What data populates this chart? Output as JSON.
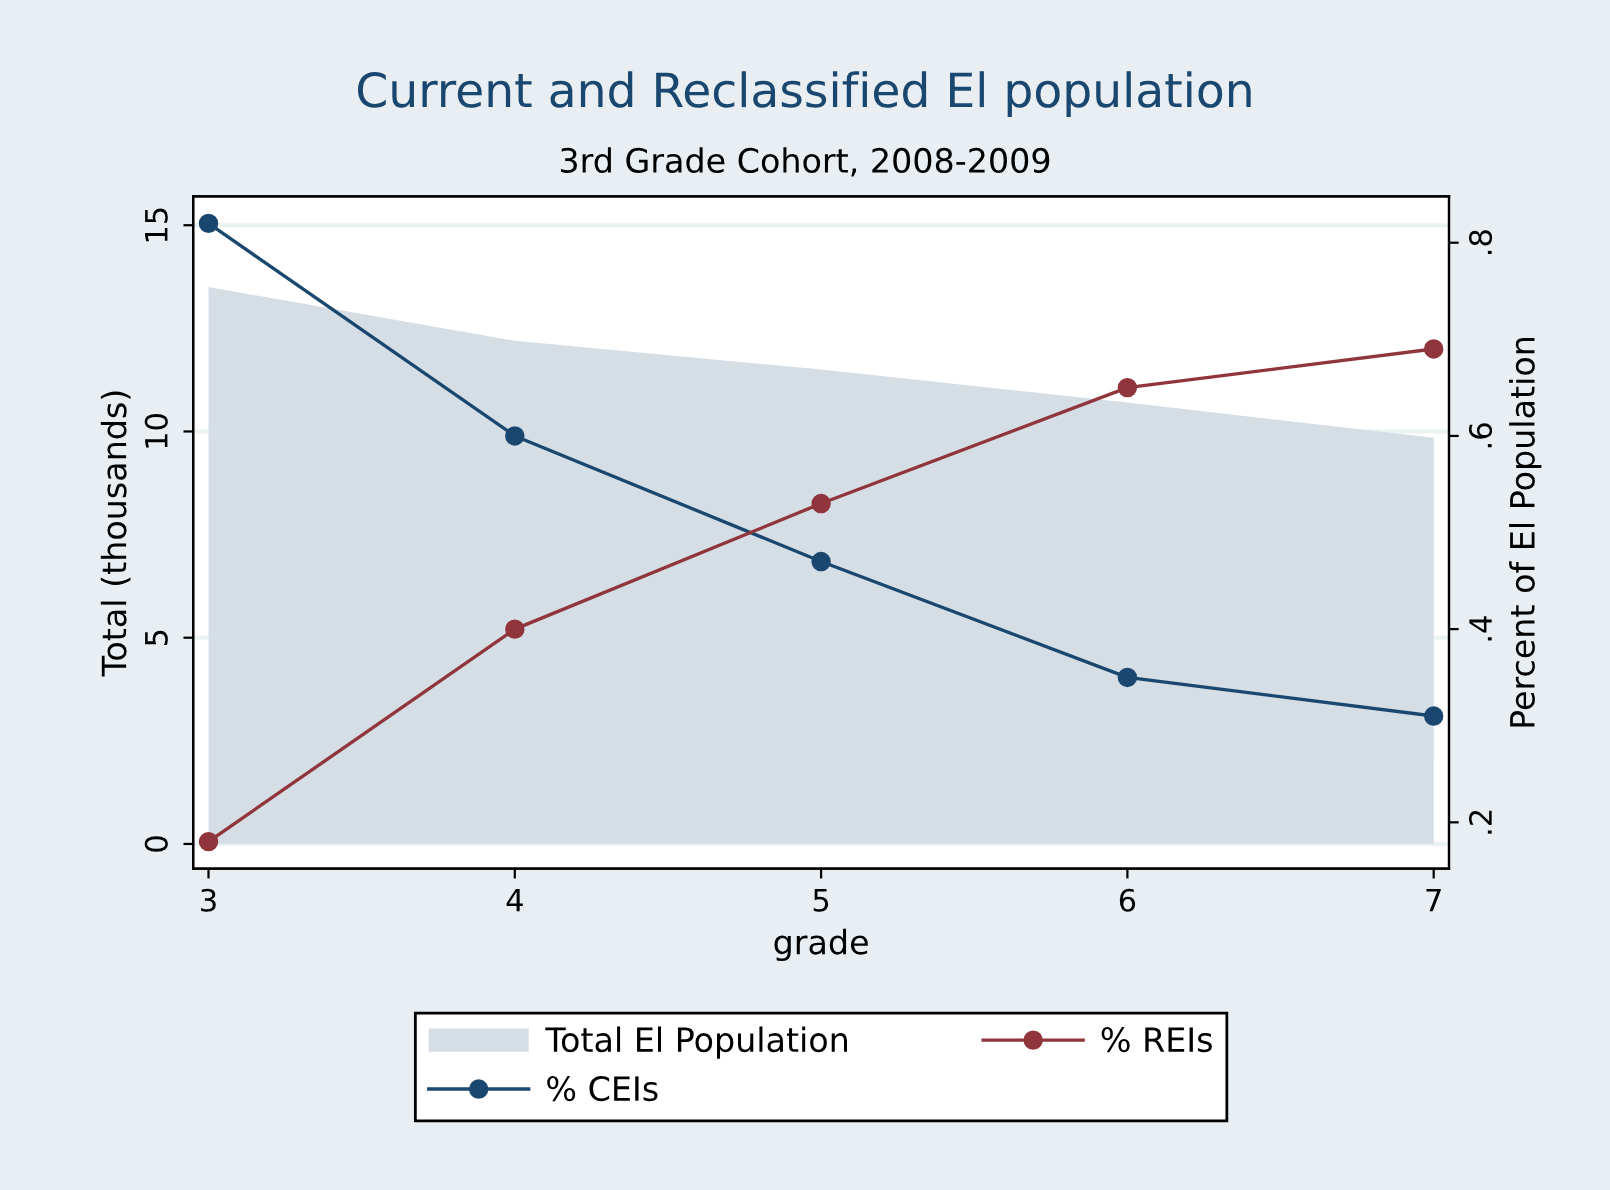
{
  "chart_data": {
    "type": "line",
    "title": "Current and Reclassified El population",
    "subtitle": "3rd Grade Cohort, 2008-2009",
    "xlabel": "grade",
    "ylabel": "Total (thousands)",
    "y2label": "Percent of El Population",
    "x": [
      3,
      4,
      5,
      6,
      7
    ],
    "series": [
      {
        "name": "Total El Population",
        "type": "area",
        "color": "#d5dde5",
        "values": [
          13.5,
          12.2,
          11.5,
          10.7,
          9.85
        ]
      },
      {
        "name": "% CEIs",
        "marker": "circle",
        "axis": "y2",
        "color": "#1a476f",
        "values": [
          0.82,
          0.6,
          0.47,
          0.35,
          0.31
        ]
      },
      {
        "name": "% REIs",
        "marker": "circle",
        "axis": "y2",
        "color": "#90353b",
        "values": [
          0.18,
          0.4,
          0.53,
          0.65,
          0.69
        ]
      }
    ],
    "xlim": [
      2.95,
      7.05
    ],
    "xticks": [
      3,
      4,
      5,
      6,
      7
    ],
    "ylim": [
      -0.6,
      15.7
    ],
    "yticks": [
      0,
      5,
      10,
      15
    ],
    "y2lim": [
      0.152,
      0.848
    ],
    "y2ticks": [
      {
        "value": 0.2,
        "label": ".2"
      },
      {
        "value": 0.4,
        "label": ".4"
      },
      {
        "value": 0.6,
        "label": ".6"
      },
      {
        "value": 0.8,
        "label": ".8"
      }
    ],
    "grid": "y",
    "legend": "bottom",
    "line_style": "solid"
  }
}
